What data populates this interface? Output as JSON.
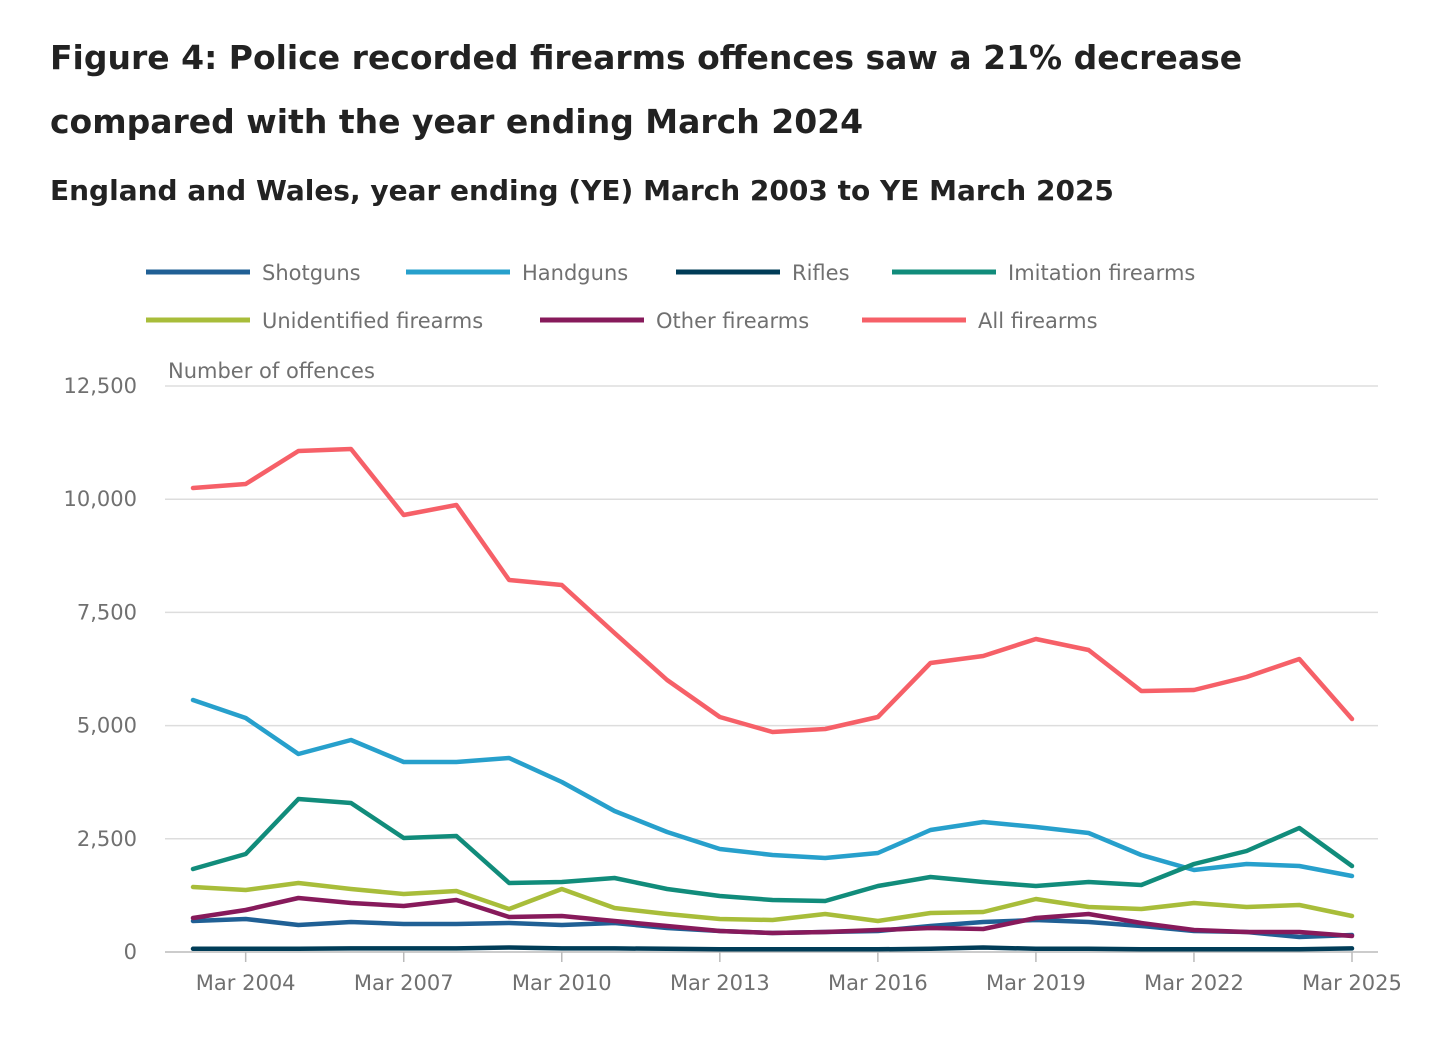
{
  "chart_data": {
    "type": "line",
    "title": "Figure 4: Police recorded firearms offences saw a 21% decrease compared with the year ending March 2024",
    "subtitle": "England and Wales, year ending (YE) March 2003 to YE March 2025",
    "ylabel": "Number of offences",
    "xlabel": "",
    "ylim": [
      0,
      12500
    ],
    "yticks": [
      "0",
      "2,500",
      "5,000",
      "7,500",
      "10,000",
      "12,500"
    ],
    "ytick_values": [
      0,
      2500,
      5000,
      7500,
      10000,
      12500
    ],
    "xtick_labels": [
      "Mar 2004",
      "Mar 2007",
      "Mar 2010",
      "Mar 2013",
      "Mar 2016",
      "Mar 2019",
      "Mar 2022",
      "Mar 2025"
    ],
    "xtick_years": [
      2004,
      2007,
      2010,
      2013,
      2016,
      2019,
      2022,
      2025
    ],
    "x": [
      2003,
      2004,
      2005,
      2006,
      2007,
      2008,
      2009,
      2010,
      2011,
      2012,
      2013,
      2014,
      2015,
      2016,
      2017,
      2018,
      2019,
      2020,
      2021,
      2022,
      2023,
      2024,
      2025
    ],
    "grid": true,
    "legend_position": "top",
    "series": [
      {
        "name": "Shotguns",
        "color": "#206095",
        "values": [
          685,
          729,
          596,
          663,
          618,
          618,
          640,
          596,
          640,
          530,
          464,
          420,
          442,
          464,
          574,
          663,
          707,
          663,
          574,
          464,
          442,
          331,
          375
        ]
      },
      {
        "name": "Handguns",
        "color": "#27a0cc",
        "values": [
          5565,
          5168,
          4373,
          4682,
          4196,
          4196,
          4284,
          3754,
          3114,
          2650,
          2275,
          2142,
          2076,
          2186,
          2694,
          2871,
          2761,
          2628,
          2142,
          1811,
          1943,
          1899,
          1678
        ]
      },
      {
        "name": "Rifles",
        "color": "#003c57",
        "values": [
          70,
          70,
          70,
          80,
          80,
          80,
          100,
          80,
          80,
          70,
          60,
          60,
          60,
          60,
          70,
          100,
          70,
          70,
          60,
          60,
          60,
          60,
          80
        ]
      },
      {
        "name": "Imitation firearms",
        "color": "#118c7b",
        "values": [
          1833,
          2164,
          3379,
          3291,
          2518,
          2562,
          1524,
          1546,
          1634,
          1391,
          1237,
          1148,
          1126,
          1458,
          1656,
          1546,
          1458,
          1546,
          1480,
          1943,
          2231,
          2739,
          1899
        ]
      },
      {
        "name": "Unidentified firearms",
        "color": "#a8bd3a",
        "values": [
          1436,
          1369,
          1524,
          1391,
          1281,
          1347,
          950,
          1391,
          972,
          839,
          729,
          707,
          839,
          685,
          861,
          883,
          1170,
          994,
          950,
          1082,
          994,
          1038,
          795
        ]
      },
      {
        "name": "Other firearms",
        "color": "#871a5b",
        "values": [
          751,
          928,
          1193,
          1082,
          1016,
          1148,
          773,
          795,
          685,
          574,
          464,
          420,
          442,
          486,
          530,
          508,
          751,
          839,
          640,
          486,
          442,
          442,
          353
        ]
      },
      {
        "name": "All firearms",
        "color": "#f66068",
        "values": [
          10247,
          10336,
          11065,
          11109,
          9651,
          9872,
          8216,
          8105,
          7045,
          6007,
          5190,
          4859,
          4925,
          5190,
          6383,
          6537,
          6913,
          6670,
          5764,
          5786,
          6073,
          6471,
          5146
        ]
      }
    ]
  }
}
